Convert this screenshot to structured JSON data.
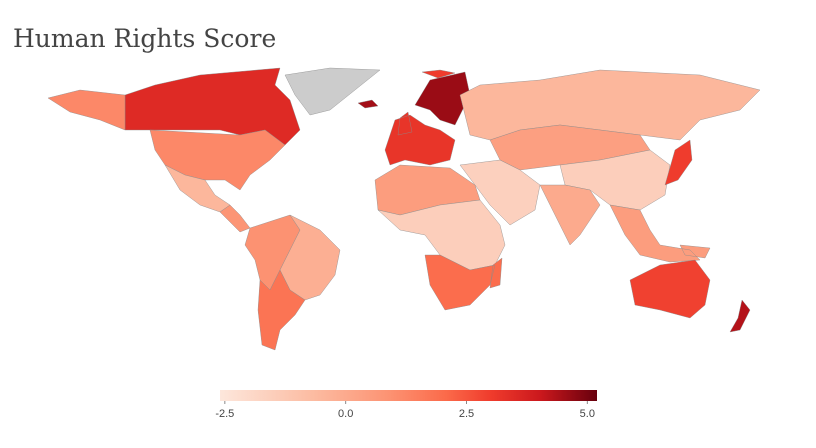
{
  "chart_data": {
    "type": "choropleth",
    "title": "Human Rights Score",
    "values": [
      3.5,
      1.2,
      -0.5,
      0.8,
      0.9,
      -0.2,
      1.8,
      3.2,
      4.6,
      4.5,
      3.0,
      -0.5,
      0.4,
      -1.5,
      -1.6,
      0.0,
      0.5,
      3.0,
      0.5,
      -1.5,
      2.0,
      2.9,
      4.3
    ],
    "zlim": [
      -2.6,
      5.2
    ],
    "zticks": [
      {
        "value": -2.5,
        "label": "-2.5"
      },
      {
        "value": 0,
        "label": "0.0"
      },
      {
        "value": 2.5,
        "label": "2.5"
      },
      {
        "value": 5,
        "label": "5.0"
      }
    ],
    "colorscale": [
      [
        0,
        "#fde7dc"
      ],
      [
        0.25,
        "#fcbba1"
      ],
      [
        0.45,
        "#fc9272"
      ],
      [
        0.6,
        "#fb6a4a"
      ],
      [
        0.72,
        "#ef3b2c"
      ],
      [
        0.85,
        "#cb181d"
      ],
      [
        1,
        "#67000d"
      ]
    ],
    "missing_color": "#cccccc"
  }
}
